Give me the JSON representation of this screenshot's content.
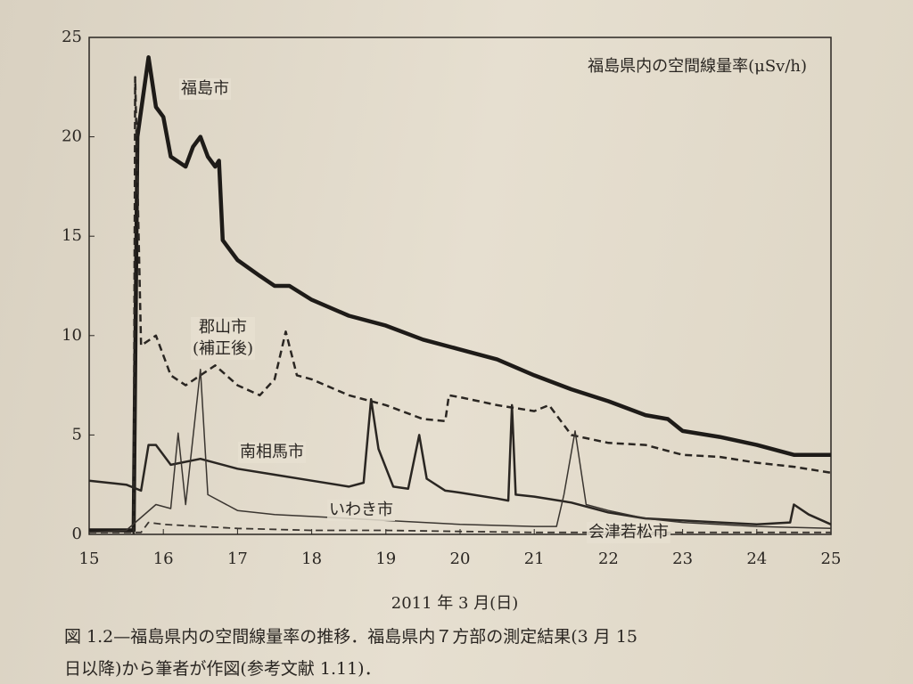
{
  "chart_data": {
    "type": "line",
    "title": "福島県内の空間線量率(μSv/h)",
    "x_label": "2011 年 3 月(日)",
    "xlim": [
      15,
      25
    ],
    "xticks": [
      15,
      16,
      17,
      18,
      19,
      20,
      21,
      22,
      23,
      24,
      25
    ],
    "ylim": [
      0,
      25
    ],
    "yticks": [
      0,
      5,
      10,
      15,
      20,
      25
    ],
    "series": [
      {
        "name": "福島市",
        "color": "#1e1b18",
        "dashed": false,
        "x": [
          15.0,
          15.6,
          15.65,
          15.8,
          15.9,
          16.0,
          16.1,
          16.3,
          16.4,
          16.5,
          16.6,
          16.7,
          16.75,
          16.8,
          17.0,
          17.3,
          17.5,
          17.7,
          18.0,
          18.5,
          19.0,
          19.5,
          20.0,
          20.5,
          21.0,
          21.5,
          22.0,
          22.5,
          22.8,
          23.0,
          23.5,
          24.0,
          24.5,
          25.0
        ],
        "values": [
          0.2,
          0.2,
          20,
          24,
          21.5,
          21,
          19,
          18.5,
          19.5,
          20,
          19,
          18.5,
          18.8,
          14.8,
          13.8,
          13,
          12.5,
          12.5,
          11.8,
          11,
          10.5,
          9.8,
          9.3,
          8.8,
          8,
          7.3,
          6.7,
          6,
          5.8,
          5.2,
          4.9,
          4.5,
          4.0,
          4.0
        ]
      },
      {
        "name": "郡山市\n(補正後)",
        "color": "#2a2622",
        "dashed": true,
        "x": [
          15.6,
          15.62,
          15.7,
          15.9,
          16.1,
          16.3,
          16.5,
          16.7,
          17.0,
          17.3,
          17.5,
          17.65,
          17.8,
          18.0,
          18.5,
          19.0,
          19.5,
          19.8,
          19.85,
          20.0,
          20.5,
          21.0,
          21.2,
          21.5,
          22.0,
          22.5,
          23.0,
          23.5,
          24.0,
          24.5,
          25.0
        ],
        "values": [
          0,
          23,
          9.5,
          10,
          8,
          7.5,
          8,
          8.5,
          7.5,
          7,
          7.8,
          10.2,
          8,
          7.8,
          7,
          6.5,
          5.8,
          5.7,
          7,
          6.9,
          6.5,
          6.2,
          6.5,
          5,
          4.6,
          4.5,
          4,
          3.9,
          3.6,
          3.4,
          3.1
        ]
      },
      {
        "name": "南相馬市",
        "color": "#2a2622",
        "dashed": false,
        "x": [
          15.0,
          15.5,
          15.7,
          15.8,
          15.9,
          16.1,
          16.5,
          17.0,
          17.5,
          18.0,
          18.5,
          18.7,
          18.8,
          18.9,
          19.1,
          19.3,
          19.45,
          19.55,
          19.8,
          20.0,
          20.5,
          20.65,
          20.7,
          20.75,
          21.0,
          21.5,
          22.0,
          22.5,
          23.0,
          23.5,
          24.0,
          24.45,
          24.5,
          24.7,
          25.0
        ],
        "values": [
          2.7,
          2.5,
          2.2,
          4.5,
          4.5,
          3.5,
          3.8,
          3.3,
          3.0,
          2.7,
          2.4,
          2.6,
          6.8,
          4.3,
          2.4,
          2.3,
          5,
          2.8,
          2.2,
          2.1,
          1.8,
          1.7,
          6.5,
          2.0,
          1.9,
          1.6,
          1.1,
          0.8,
          0.7,
          0.6,
          0.5,
          0.6,
          1.5,
          1,
          0.5
        ]
      },
      {
        "name": "いわき市",
        "color": "#3a3530",
        "dashed": false,
        "x": [
          15.0,
          15.5,
          15.9,
          16.1,
          16.2,
          16.3,
          16.5,
          16.6,
          17.0,
          17.5,
          18.0,
          18.5,
          19.0,
          20.0,
          21.0,
          21.3,
          21.4,
          21.55,
          21.7,
          22.0,
          22.5,
          23.0,
          24.0,
          25.0
        ],
        "values": [
          0.1,
          0.2,
          1.5,
          1.3,
          5.1,
          1.5,
          8.3,
          2,
          1.2,
          1,
          0.9,
          0.8,
          0.7,
          0.5,
          0.4,
          0.4,
          2,
          5.2,
          1.5,
          1.2,
          0.8,
          0.6,
          0.4,
          0.3
        ]
      },
      {
        "name": "会津若松市",
        "color": "#3a3530",
        "dashed": true,
        "x": [
          15.0,
          15.7,
          15.8,
          16.0,
          17.0,
          18.0,
          19.0,
          20.0,
          21.0,
          22.0,
          25.0
        ],
        "values": [
          0.1,
          0.1,
          0.6,
          0.5,
          0.3,
          0.2,
          0.2,
          0.15,
          0.1,
          0.1,
          0.1
        ]
      }
    ]
  },
  "caption": {
    "line1": "図 1.2—福島県内の空間線量率の推移．福島県内７方部の測定結果(3 月 15",
    "line2": "日以降)から筆者が作図(参考文献 1.11)．"
  }
}
